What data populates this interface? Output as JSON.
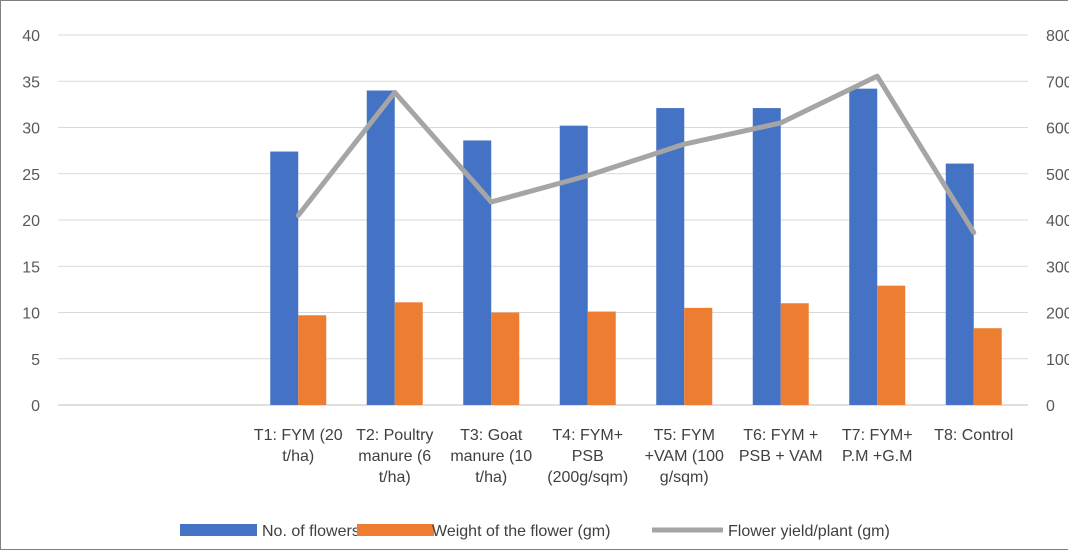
{
  "chart_data": {
    "type": "bar",
    "categories": [
      [
        "T1: FYM (20",
        "t/ha)"
      ],
      [
        "T2: Poultry",
        "manure (6",
        "t/ha)"
      ],
      [
        "T3: Goat",
        "manure (10",
        "t/ha)"
      ],
      [
        "T4: FYM+",
        "PSB",
        "(200g/sqm)"
      ],
      [
        "T5: FYM",
        "+VAM (100",
        "g/sqm)"
      ],
      [
        "T6: FYM +",
        "PSB + VAM"
      ],
      [
        "T7: FYM+",
        "P.M +G.M"
      ],
      [
        "T8: Control"
      ]
    ],
    "series": [
      {
        "name": "No. of flowers",
        "axis": "left",
        "kind": "bar",
        "color": "#4472c4",
        "values": [
          27.4,
          34.0,
          28.6,
          30.2,
          32.1,
          32.1,
          34.2,
          26.1
        ]
      },
      {
        "name": "Weight of the flower (gm)",
        "axis": "left",
        "kind": "bar",
        "color": "#ed7d31",
        "values": [
          9.7,
          11.1,
          10.0,
          10.1,
          10.5,
          11.0,
          12.9,
          8.3
        ]
      },
      {
        "name": "Flower yield/plant (gm)",
        "axis": "right",
        "kind": "line",
        "color": "#a5a5a5",
        "values": [
          410,
          676,
          439,
          496,
          564,
          610,
          711,
          373
        ]
      }
    ],
    "ylim": [
      0,
      40
    ],
    "y2lim": [
      0,
      800
    ],
    "yticks": [
      "0",
      "5",
      "10",
      "15",
      "20",
      "25",
      "30",
      "35",
      "40"
    ],
    "y2ticks": [
      "0",
      "100",
      "200",
      "300",
      "400",
      "500",
      "600",
      "700",
      "800"
    ],
    "grid": true,
    "legend_position": "bottom"
  }
}
